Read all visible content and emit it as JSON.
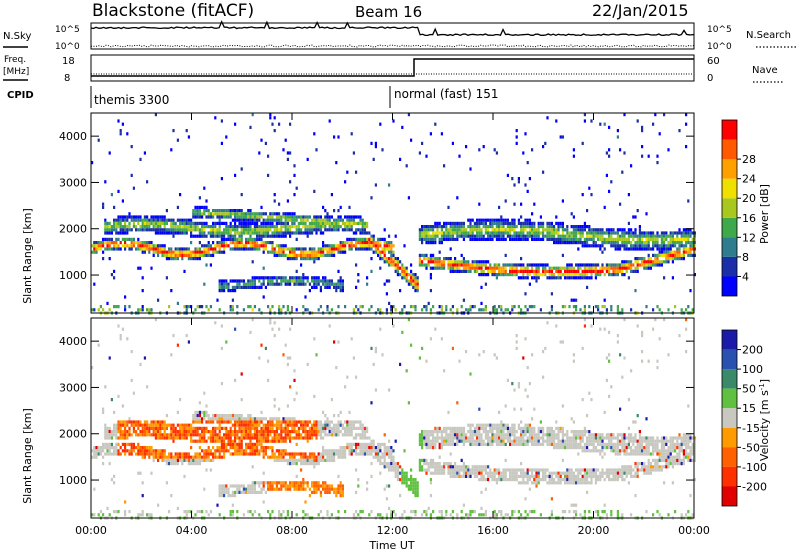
{
  "header": {
    "site": "Blackstone (fitACF)",
    "beam": "Beam 16",
    "date": "22/Jan/2015"
  },
  "top_panels": {
    "nsky_label": "N.Sky",
    "nsearch_label": "N.Search",
    "freq_label_1": "Freq.",
    "freq_label_2": "[MHz]",
    "nave_label": "Nave",
    "cpid_label": "CPID",
    "left_ticks_noise": [
      "10^5",
      "10^0"
    ],
    "right_ticks_noise": [
      "10^5",
      "10^0"
    ],
    "left_ticks_freq": [
      "18",
      "8"
    ],
    "right_ticks_freq": [
      "60",
      "0"
    ]
  },
  "cpid": [
    {
      "name": "themis 3300",
      "start_hour": 0,
      "end_hour": 12
    },
    {
      "name": "normal (fast) 151",
      "start_hour": 12,
      "end_hour": 24
    }
  ],
  "chart_data": [
    {
      "type": "heatmap",
      "name": "power",
      "xlabel": "Time UT",
      "ylabel": "Slant Range [km]",
      "colorbar_label": "Power [dB]",
      "xlim": [
        0,
        24
      ],
      "ylim": [
        180,
        4500
      ],
      "x_ticks": [
        "00:00",
        "04:00",
        "08:00",
        "12:00",
        "16:00",
        "20:00",
        "00:00"
      ],
      "y_ticks": [
        1000,
        2000,
        3000,
        4000
      ],
      "colorbar_ticks": [
        4,
        8,
        12,
        16,
        20,
        24,
        28
      ],
      "colors": [
        "#0000ff",
        "#1a2ea8",
        "#2f7c8e",
        "#3ea84a",
        "#a8c820",
        "#f0e000",
        "#ffa000",
        "#ff5a00",
        "#ff0000"
      ]
    },
    {
      "type": "heatmap",
      "name": "velocity",
      "xlabel": "Time UT",
      "ylabel": "Slant Range [km]",
      "colorbar_label": "Velocity [m s^-1]",
      "xlim": [
        0,
        24
      ],
      "ylim": [
        180,
        4500
      ],
      "x_ticks": [
        "00:00",
        "04:00",
        "08:00",
        "12:00",
        "16:00",
        "20:00",
        "00:00"
      ],
      "y_ticks": [
        1000,
        2000,
        3000,
        4000
      ],
      "colorbar_ticks": [
        200,
        100,
        50,
        15,
        -15,
        -50,
        -100,
        -200
      ],
      "colors": [
        "#1a1aa8",
        "#2a50b0",
        "#3a8a6a",
        "#60c040",
        "#c8c8c0",
        "#ff9a00",
        "#ff6000",
        "#ff3000",
        "#e00000"
      ]
    }
  ],
  "axes": {
    "time_label": "Time UT",
    "slant_label": "Slant Range [km]",
    "power_label": "Power [dB]",
    "velocity_label": "Velocity [m s",
    "velocity_exp": "-1",
    "velocity_close": "]"
  }
}
